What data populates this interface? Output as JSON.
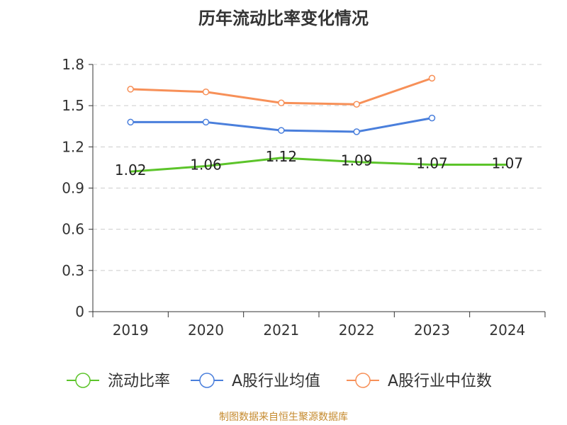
{
  "chart_data": {
    "type": "line",
    "title": "历年流动比率变化情况",
    "categories": [
      "2019",
      "2020",
      "2021",
      "2022",
      "2023",
      "2024"
    ],
    "ylim": [
      0,
      1.8
    ],
    "yticks": [
      "0",
      "0.3",
      "0.6",
      "0.9",
      "1.2",
      "1.5",
      "1.8"
    ],
    "grid": true,
    "legend_position": "bottom",
    "series": [
      {
        "name": "流动比率",
        "color": "#5cc42a",
        "values": [
          1.02,
          1.06,
          1.12,
          1.09,
          1.07,
          1.07
        ],
        "labels": [
          "1.02",
          "1.06",
          "1.12",
          "1.09",
          "1.07",
          "1.07"
        ]
      },
      {
        "name": "A股行业均值",
        "color": "#4a7fdc",
        "values": [
          1.38,
          1.38,
          1.32,
          1.31,
          1.41,
          null
        ]
      },
      {
        "name": "A股行业中位数",
        "color": "#f79058",
        "values": [
          1.62,
          1.6,
          1.52,
          1.51,
          1.7,
          null
        ]
      }
    ]
  },
  "source": "制图数据来自恒生聚源数据库"
}
